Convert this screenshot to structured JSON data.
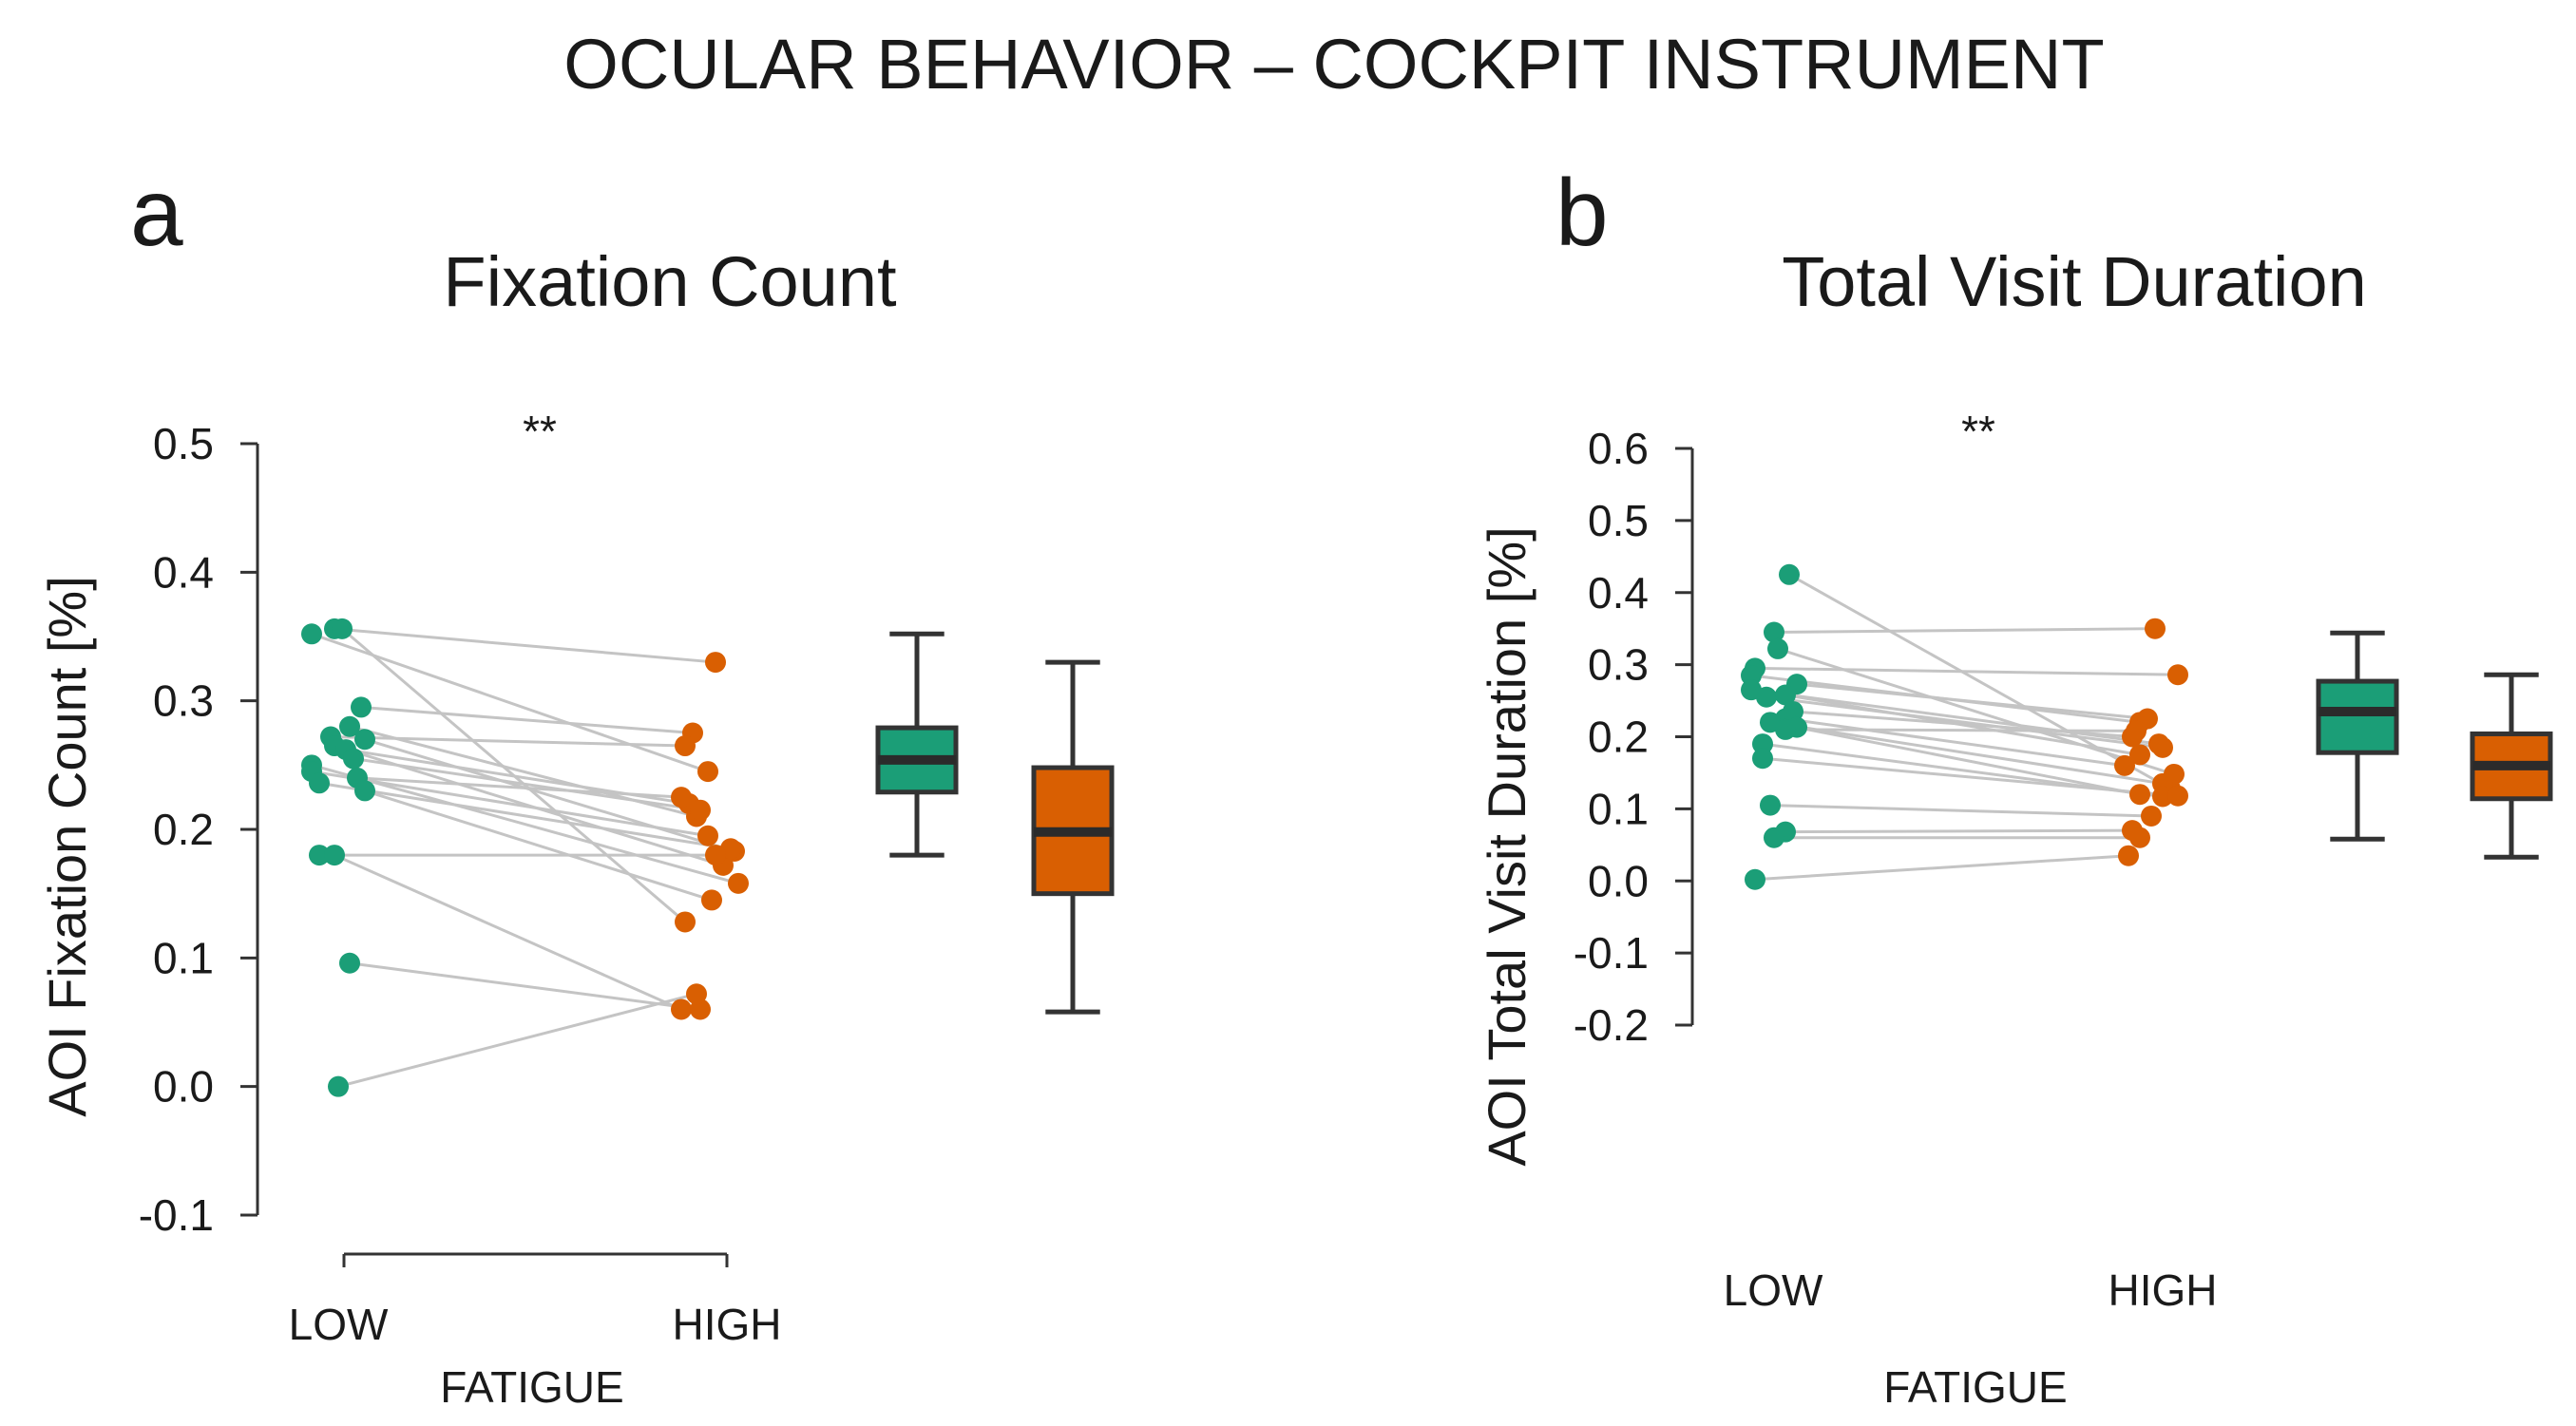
{
  "figure_title": "OCULAR BEHAVIOR – COCKPIT INSTRUMENT",
  "colors": {
    "low": "#1b9e77",
    "high": "#d95f02",
    "pair_line": "#c4c4c4",
    "axis": "#333333",
    "box_stroke": "#333333"
  },
  "chart_data": [
    {
      "panel_letter": "a",
      "type": "scatter",
      "subtype": "paired-scatter-with-boxplots",
      "title": "Fixation Count",
      "ylabel": "AOI Fixation Count [%]",
      "xlabel": "FATIGUE",
      "categories": [
        "LOW",
        "HIGH"
      ],
      "ylim": [
        -0.1,
        0.5
      ],
      "yticks": [
        -0.1,
        0.0,
        0.1,
        0.2,
        0.3,
        0.4,
        0.5
      ],
      "ytick_labels": [
        "-0.1",
        "0.0",
        "0.1",
        "0.2",
        "0.3",
        "0.4",
        "0.5"
      ],
      "significance": "**",
      "show_x_axis_line": true,
      "series": [
        {
          "name": "LOW",
          "values": [
            0.352,
            0.356,
            0.356,
            0.295,
            0.28,
            0.272,
            0.27,
            0.265,
            0.262,
            0.255,
            0.25,
            0.245,
            0.24,
            0.236,
            0.23,
            0.18,
            0.18,
            0.096,
            0.0
          ]
        },
        {
          "name": "HIGH",
          "values": [
            0.245,
            0.33,
            0.128,
            0.275,
            0.21,
            0.265,
            0.183,
            0.172,
            0.22,
            0.215,
            0.158,
            0.195,
            0.225,
            0.185,
            0.145,
            0.18,
            0.06,
            0.06,
            0.072
          ]
        }
      ],
      "jitter_low": [
        0.1,
        0.4,
        0.5,
        0.75,
        0.6,
        0.35,
        0.8,
        0.4,
        0.55,
        0.65,
        0.1,
        0.1,
        0.7,
        0.2,
        0.8,
        0.2,
        0.4,
        0.6,
        0.45
      ],
      "jitter_high": [
        0.4,
        0.5,
        0.1,
        0.2,
        0.25,
        0.1,
        0.75,
        0.6,
        0.15,
        0.3,
        0.8,
        0.4,
        0.05,
        0.7,
        0.45,
        0.5,
        0.05,
        0.3,
        0.25
      ],
      "boxplots": [
        {
          "name": "LOW",
          "whisker_low": 0.18,
          "q1": 0.229,
          "median": 0.254,
          "q3": 0.279,
          "whisker_high": 0.352
        },
        {
          "name": "HIGH",
          "whisker_low": 0.058,
          "q1": 0.15,
          "median": 0.198,
          "q3": 0.248,
          "whisker_high": 0.33
        }
      ]
    },
    {
      "panel_letter": "b",
      "type": "scatter",
      "subtype": "paired-scatter-with-boxplots",
      "title": "Total Visit Duration",
      "ylabel": "AOI Total Visit Duration [%]",
      "xlabel": "FATIGUE",
      "categories": [
        "LOW",
        "HIGH"
      ],
      "ylim": [
        -0.2,
        0.6
      ],
      "yticks": [
        -0.2,
        -0.1,
        0.0,
        0.1,
        0.2,
        0.3,
        0.4,
        0.5,
        0.6
      ],
      "ytick_labels": [
        "-0.2",
        "-0.1",
        "0.0",
        "0.1",
        "0.2",
        "0.3",
        "0.4",
        "0.5",
        "0.6"
      ],
      "significance": "**",
      "show_x_axis_line": false,
      "series": [
        {
          "name": "LOW",
          "values": [
            0.425,
            0.345,
            0.322,
            0.295,
            0.285,
            0.273,
            0.265,
            0.255,
            0.258,
            0.235,
            0.225,
            0.22,
            0.213,
            0.21,
            0.19,
            0.17,
            0.105,
            0.068,
            0.06,
            0.002
          ]
        },
        {
          "name": "HIGH",
          "values": [
            0.128,
            0.35,
            0.148,
            0.286,
            0.22,
            0.225,
            0.19,
            0.185,
            0.175,
            0.2,
            0.16,
            0.135,
            0.12,
            0.208,
            0.117,
            0.118,
            0.09,
            0.07,
            0.06,
            0.035
          ]
        }
      ],
      "jitter_low": [
        0.6,
        0.4,
        0.45,
        0.15,
        0.1,
        0.7,
        0.1,
        0.3,
        0.55,
        0.65,
        0.55,
        0.35,
        0.7,
        0.55,
        0.25,
        0.25,
        0.35,
        0.55,
        0.4,
        0.15
      ],
      "jitter_high": [
        0.7,
        0.5,
        0.75,
        0.8,
        0.3,
        0.4,
        0.55,
        0.6,
        0.3,
        0.2,
        0.1,
        0.6,
        0.3,
        0.25,
        0.6,
        0.8,
        0.45,
        0.2,
        0.3,
        0.15
      ],
      "boxplots": [
        {
          "name": "LOW",
          "whisker_low": 0.058,
          "q1": 0.178,
          "median": 0.235,
          "q3": 0.277,
          "whisker_high": 0.344
        },
        {
          "name": "HIGH",
          "whisker_low": 0.033,
          "q1": 0.114,
          "median": 0.16,
          "q3": 0.204,
          "whisker_high": 0.286
        }
      ]
    }
  ]
}
